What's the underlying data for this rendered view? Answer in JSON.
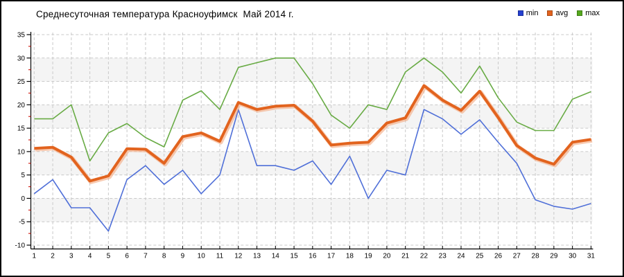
{
  "title": "Среднесуточная температура Красноуфимск  Май 2014 г.",
  "legend": {
    "position": "top-right",
    "items": [
      {
        "label": "min",
        "color": "#2440d0"
      },
      {
        "label": "avg",
        "color": "#e2631e"
      },
      {
        "label": "max",
        "color": "#55a81e"
      }
    ]
  },
  "axes": {
    "y_tick_labels": [
      35,
      30,
      25,
      20,
      15,
      10,
      5,
      0,
      -5,
      -10
    ],
    "y_minor_ticks": [
      32.5,
      27.5,
      22.5,
      17.5,
      12.5,
      7.5,
      2.5,
      -2.5,
      -7.5
    ],
    "x_tick_labels": [
      1,
      2,
      3,
      4,
      5,
      6,
      7,
      8,
      9,
      10,
      11,
      12,
      13,
      14,
      15,
      16,
      17,
      18,
      19,
      20,
      21,
      22,
      23,
      24,
      25,
      26,
      27,
      28,
      29,
      30,
      31
    ],
    "minor_tick_color": "#cc2218",
    "grid_color": "#c9c9c9",
    "band_color": "#f4f4f4"
  },
  "chart_data": {
    "type": "line",
    "title": "Среднесуточная температура Красноуфимск  Май 2014 г.",
    "xlabel": "",
    "ylabel": "",
    "x": [
      1,
      2,
      3,
      4,
      5,
      6,
      7,
      8,
      9,
      10,
      11,
      12,
      13,
      14,
      15,
      16,
      17,
      18,
      19,
      20,
      21,
      22,
      23,
      24,
      25,
      26,
      27,
      28,
      29,
      30,
      31
    ],
    "ylim": [
      -10,
      35
    ],
    "ytick_step": 5,
    "grid": "dashed-both",
    "legend_position": "top-right",
    "series": [
      {
        "name": "min",
        "color": "#4f6fd8",
        "width": 1.6,
        "values": [
          1,
          4,
          -2,
          -2,
          -7,
          4,
          7,
          3,
          6,
          1,
          5,
          19,
          7,
          7,
          6,
          8,
          3,
          9,
          0,
          6,
          5,
          19,
          17,
          13.7,
          16.8,
          12,
          7.5,
          -0.3,
          -1.7,
          -2.3,
          -1.1
        ]
      },
      {
        "name": "avg",
        "color": "#e2631e",
        "width": 4,
        "values": [
          10.7,
          10.9,
          8.8,
          3.7,
          4.8,
          10.6,
          10.5,
          7.5,
          13.2,
          14,
          12.2,
          20.5,
          19,
          19.7,
          19.9,
          16.5,
          11.4,
          11.8,
          12,
          16.1,
          17.2,
          24.1,
          21,
          18.8,
          22.9,
          17.3,
          11.3,
          8.6,
          7.3,
          12,
          12.6
        ]
      },
      {
        "name": "max",
        "color": "#68ab44",
        "width": 1.6,
        "values": [
          17,
          17,
          20,
          8,
          14,
          16,
          13,
          11,
          21,
          23,
          19,
          28,
          29,
          30,
          30,
          24.5,
          17.8,
          15,
          20,
          19,
          27,
          30,
          27,
          22.5,
          28.3,
          21.5,
          16.3,
          14.5,
          14.5,
          21.2,
          22.8
        ]
      }
    ]
  }
}
